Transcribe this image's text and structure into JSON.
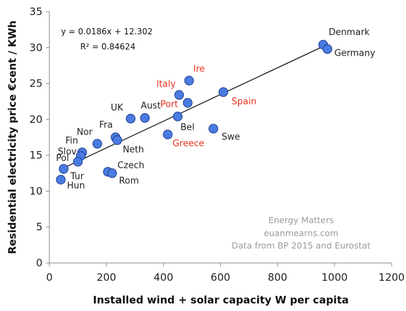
{
  "chart_data": {
    "type": "scatter",
    "title": "",
    "xlabel": "Installed wind + solar capacity W per capita",
    "ylabel": "Residential electricity price €cent / KWh",
    "xlim": [
      0,
      1200
    ],
    "ylim": [
      0,
      35
    ],
    "x_ticks": [
      0,
      200,
      400,
      600,
      800,
      1000,
      1200
    ],
    "y_ticks": [
      0,
      5,
      10,
      15,
      20,
      25,
      30,
      35
    ],
    "grid": false,
    "legend": "none",
    "colors": {
      "marker_fill": "#4a7be0",
      "marker_stroke": "#1f3f8f",
      "label_default": "#222222",
      "label_highlight": "#e8321e",
      "trendline": "#000000"
    },
    "points": [
      {
        "label": "Denmark",
        "x": 960,
        "y": 30.4,
        "color": "default"
      },
      {
        "label": "Germany",
        "x": 975,
        "y": 29.8,
        "color": "default"
      },
      {
        "label": "Ire",
        "x": 490,
        "y": 25.4,
        "color": "highlight"
      },
      {
        "label": "Italy",
        "x": 455,
        "y": 23.4,
        "color": "highlight"
      },
      {
        "label": "Spain",
        "x": 610,
        "y": 23.8,
        "color": "highlight"
      },
      {
        "label": "Port",
        "x": 485,
        "y": 22.3,
        "color": "highlight"
      },
      {
        "label": "UK",
        "x": 285,
        "y": 20.1,
        "color": "default"
      },
      {
        "label": "Aust",
        "x": 335,
        "y": 20.2,
        "color": "default"
      },
      {
        "label": "Bel",
        "x": 450,
        "y": 20.4,
        "color": "default"
      },
      {
        "label": "Swe",
        "x": 575,
        "y": 18.7,
        "color": "default"
      },
      {
        "label": "Greece",
        "x": 415,
        "y": 17.9,
        "color": "highlight"
      },
      {
        "label": "Fra",
        "x": 232,
        "y": 17.5,
        "color": "default"
      },
      {
        "label": "Neth",
        "x": 238,
        "y": 17.1,
        "color": "default"
      },
      {
        "label": "Nor",
        "x": 168,
        "y": 16.6,
        "color": "default"
      },
      {
        "label": "Fin",
        "x": 115,
        "y": 15.4,
        "color": "default"
      },
      {
        "label": "Slov",
        "x": 110,
        "y": 14.9,
        "color": "default"
      },
      {
        "label": "Pol",
        "x": 100,
        "y": 14.1,
        "color": "default"
      },
      {
        "label": "Tur",
        "x": 50,
        "y": 13.1,
        "color": "default"
      },
      {
        "label": "Hun",
        "x": 40,
        "y": 11.6,
        "color": "default"
      },
      {
        "label": "Czech",
        "x": 205,
        "y": 12.7,
        "color": "default"
      },
      {
        "label": "Rom",
        "x": 220,
        "y": 12.5,
        "color": "default"
      }
    ],
    "trendline": {
      "slope": 0.0186,
      "intercept": 12.302,
      "x_from": 50,
      "x_to": 975
    },
    "annotations": {
      "equation": "y = 0.0186x + 12.302",
      "r_squared": "R² = 0.84624",
      "credits": [
        "Energy Matters",
        "euanmearns.com",
        "Data from BP 2015 and Eurostat"
      ]
    }
  }
}
